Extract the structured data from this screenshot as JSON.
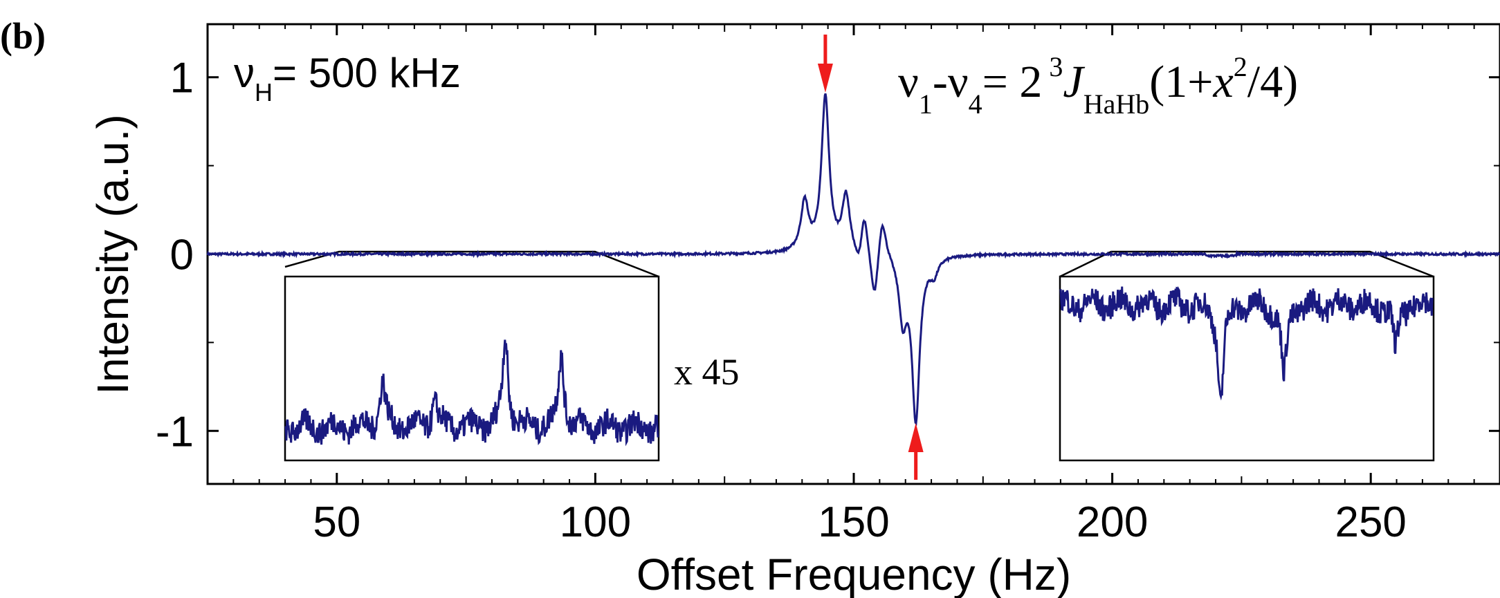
{
  "chart_data": {
    "type": "line",
    "panel_label": "(b)",
    "xlabel": "Offset Frequency (Hz)",
    "ylabel": "Intensity (a.u.)",
    "xlim": [
      25,
      275
    ],
    "ylim": [
      -1.3,
      1.3
    ],
    "x_ticks": [
      50,
      100,
      150,
      200,
      250
    ],
    "x_tick_labels": [
      "50",
      "100",
      "150",
      "200",
      "250"
    ],
    "y_ticks": [
      1,
      0,
      -1
    ],
    "y_tick_labels": [
      "1",
      "0",
      "-1"
    ],
    "grid": false,
    "line_color": "#1a1a80",
    "arrow_color": "#ee1c1c",
    "annotations": {
      "field": {
        "symbol": "ν",
        "sub": "H",
        "rest": "= 500 kHz"
      },
      "formula": {
        "nu": "ν",
        "sub1": "1",
        "dash": "-",
        "nu2": "ν",
        "sub4": "4",
        "eq": "= 2",
        "sup3": "3",
        "J": "J",
        "subHaHb": "HaHb",
        "open": "(1+",
        "x": "x",
        "sup2": "2",
        "tail": "/4)"
      },
      "inset_scale": "x 45"
    },
    "main_series": {
      "baseline": 0.0,
      "peaks": [
        {
          "x": 140.5,
          "y": 0.28
        },
        {
          "x": 144.5,
          "y": 0.88
        },
        {
          "x": 148.5,
          "y": 0.32
        },
        {
          "x": 152.0,
          "y": 0.26
        },
        {
          "x": 155.5,
          "y": 0.25
        },
        {
          "x": 162.0,
          "y": -0.92
        }
      ],
      "troughs": [
        {
          "x": 151.0,
          "y": -0.13
        },
        {
          "x": 154.0,
          "y": -0.3
        },
        {
          "x": 159.5,
          "y": -0.35
        },
        {
          "x": 165.5,
          "y": -0.09
        }
      ]
    },
    "left_inset": {
      "zoom_range": [
        50,
        100
      ],
      "relative_peaks": [
        {
          "x": 63,
          "y": 0.25
        },
        {
          "x": 70,
          "y": 0.15
        },
        {
          "x": 79.5,
          "y": 0.5
        },
        {
          "x": 87,
          "y": 0.4
        }
      ]
    },
    "right_inset": {
      "zoom_range": [
        200,
        250
      ],
      "relative_dips": [
        {
          "x": 221.5,
          "y": -0.55
        },
        {
          "x": 230,
          "y": -0.4
        },
        {
          "x": 245,
          "y": -0.25
        }
      ]
    },
    "arrows": [
      {
        "x": 144.5,
        "direction": "down"
      },
      {
        "x": 162.0,
        "direction": "up"
      }
    ]
  }
}
